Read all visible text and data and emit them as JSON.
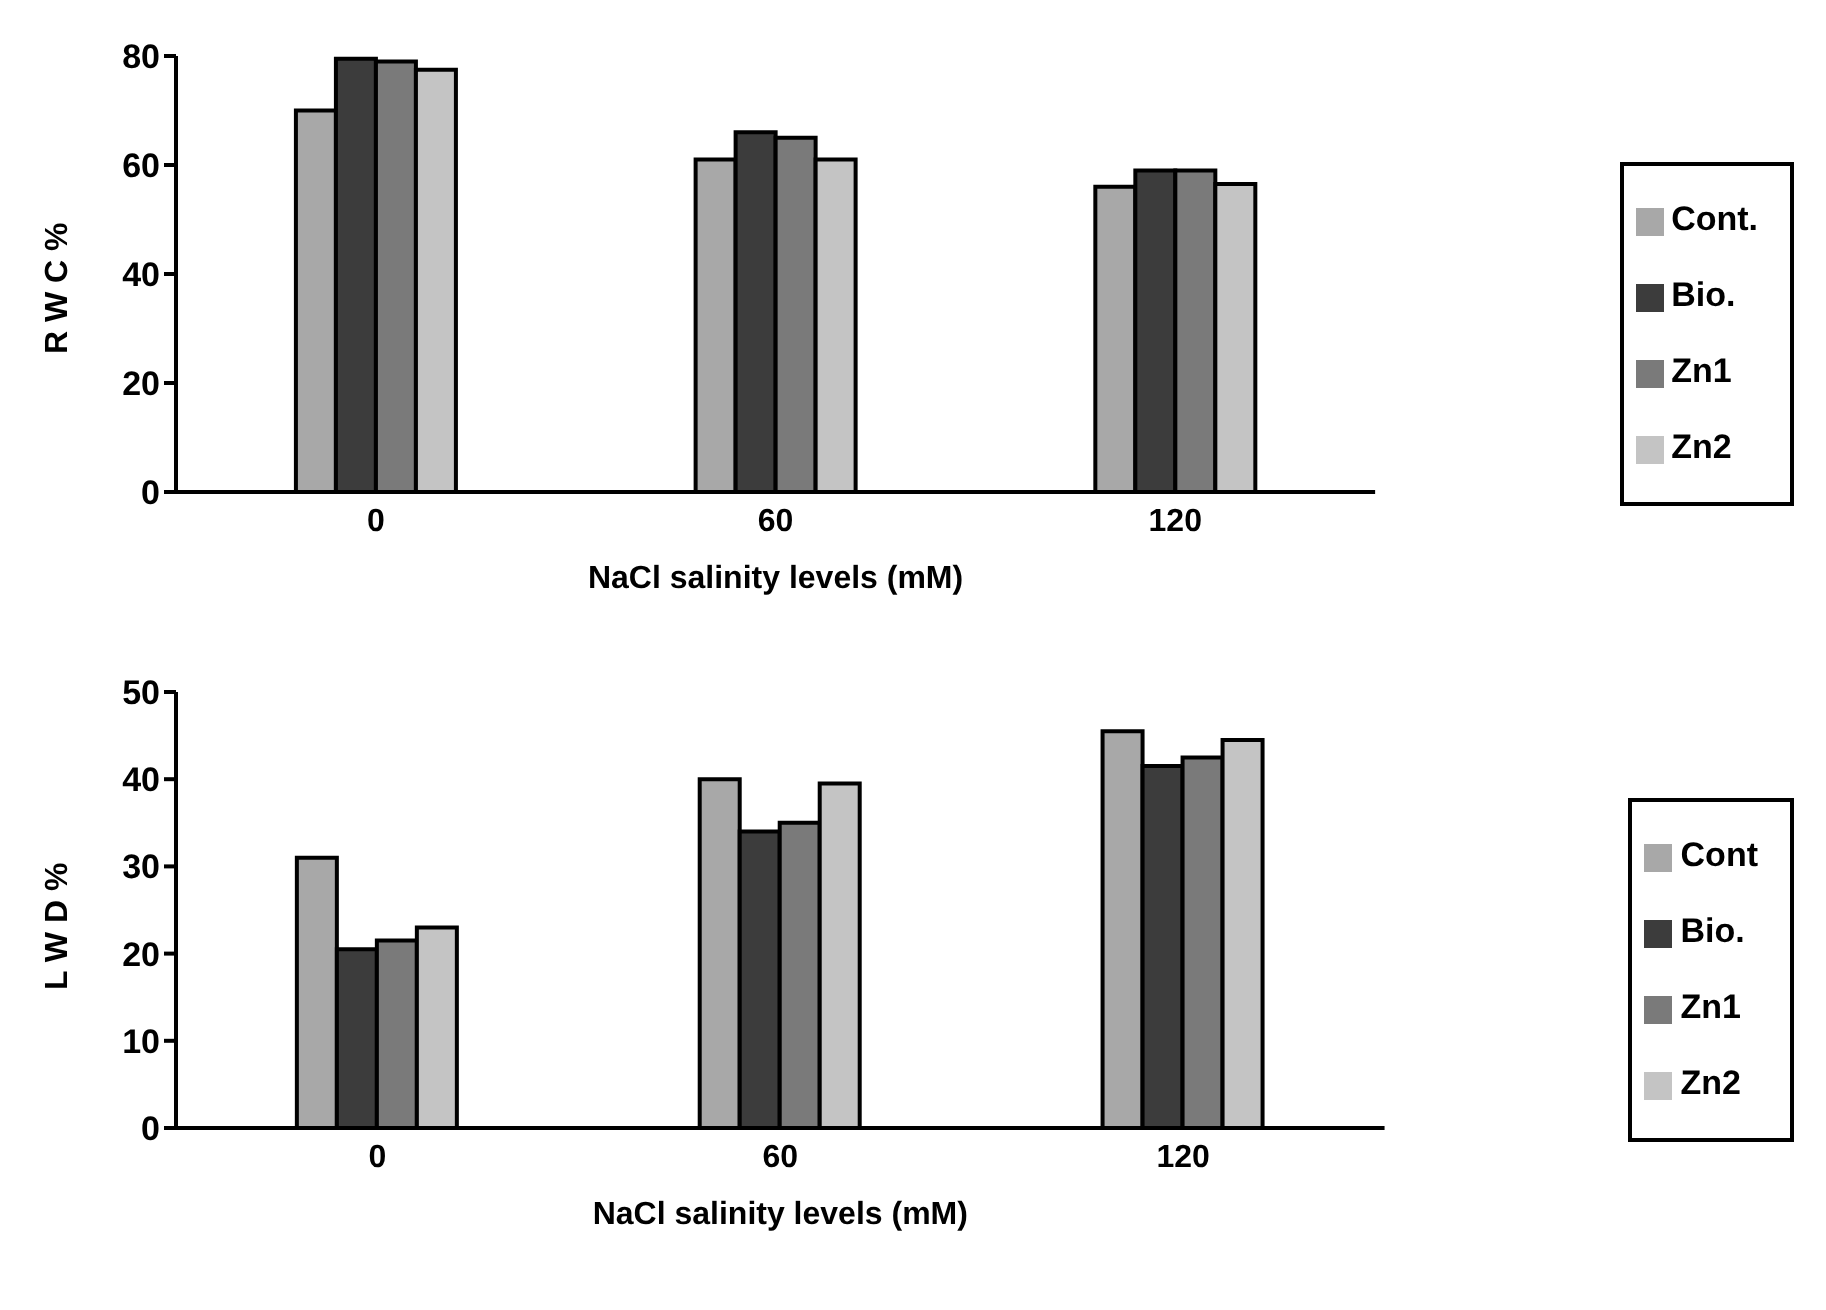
{
  "chart_data": [
    {
      "type": "bar",
      "xlabel": "NaCl salinity levels (mM)",
      "ylabel": "R W C %",
      "categories": [
        "0",
        "60",
        "120"
      ],
      "series": [
        {
          "name": "Cont.",
          "color": "#a8a8a8",
          "values": [
            70,
            61,
            56
          ]
        },
        {
          "name": "Bio.",
          "color": "#3c3c3c",
          "values": [
            79.5,
            66,
            59
          ]
        },
        {
          "name": "Zn1",
          "color": "#7a7a7a",
          "values": [
            79,
            65,
            59
          ]
        },
        {
          "name": "Zn2",
          "color": "#c4c4c4",
          "values": [
            77.5,
            61,
            56.5
          ]
        }
      ],
      "ylim": [
        0,
        80
      ],
      "yticks": [
        0,
        20,
        40,
        60,
        80
      ],
      "grid": false,
      "legend": "right"
    },
    {
      "type": "bar",
      "xlabel": "NaCl salinity levels (mM)",
      "ylabel": "L W D %",
      "categories": [
        "0",
        "60",
        "120"
      ],
      "series": [
        {
          "name": "Cont",
          "color": "#a8a8a8",
          "values": [
            31,
            40,
            45.5
          ]
        },
        {
          "name": "Bio.",
          "color": "#3c3c3c",
          "values": [
            20.5,
            34,
            41.5
          ]
        },
        {
          "name": "Zn1",
          "color": "#7a7a7a",
          "values": [
            21.5,
            35,
            42.5
          ]
        },
        {
          "name": "Zn2",
          "color": "#c4c4c4",
          "values": [
            23,
            39.5,
            44.5
          ]
        }
      ],
      "ylim": [
        0,
        50
      ],
      "yticks": [
        0,
        10,
        20,
        30,
        40,
        50
      ],
      "grid": false,
      "legend": "right"
    }
  ]
}
